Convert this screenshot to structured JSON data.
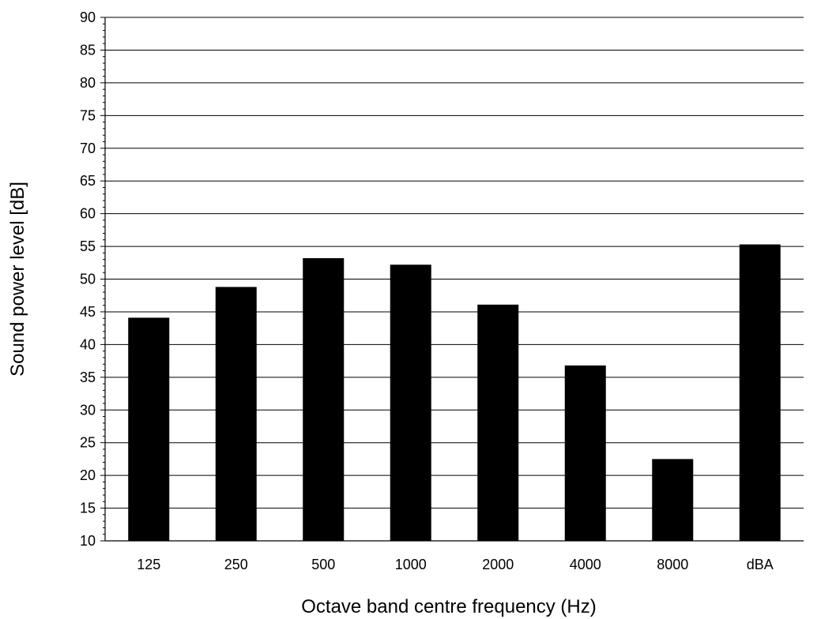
{
  "chart_data": {
    "type": "bar",
    "categories": [
      "125",
      "250",
      "500",
      "1000",
      "2000",
      "4000",
      "8000",
      "dBA"
    ],
    "values": [
      44.1,
      48.8,
      53.2,
      52.2,
      46.1,
      36.8,
      22.5,
      55.3
    ],
    "title": "",
    "xlabel": "Octave band centre frequency (Hz)",
    "ylabel": "Sound power level [dB]",
    "ylim": [
      10,
      90
    ],
    "yticks": [
      "10",
      "15",
      "20",
      "25",
      "30",
      "35",
      "40",
      "45",
      "50",
      "55",
      "60",
      "65",
      "70",
      "75",
      "80",
      "85",
      "90"
    ],
    "grid": true,
    "legend": "none",
    "bar_color": "#000000"
  }
}
